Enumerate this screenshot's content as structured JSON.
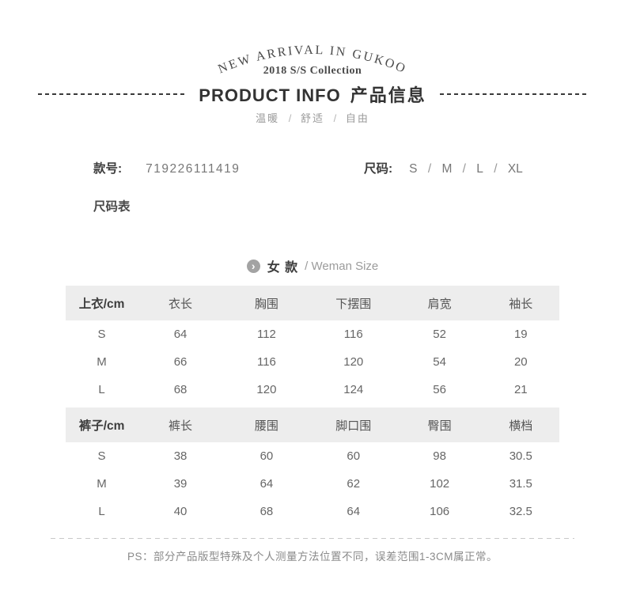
{
  "header": {
    "arc_text": "NEW ARRIVAL IN GUKOO",
    "collection": "2018 S/S Collection",
    "title_en": "PRODUCT INFO",
    "title_zh": "产品信息",
    "tagline_words": [
      "温暖",
      "舒适",
      "自由"
    ],
    "tagline_separator": "/"
  },
  "product_info": {
    "style_label": "款号:",
    "style_number": "719226111419",
    "size_label": "尺码:",
    "sizes": [
      "S",
      "M",
      "L",
      "XL"
    ],
    "size_separator": "/",
    "size_chart_label": "尺码表"
  },
  "size_section": {
    "chevron_icon": "›",
    "heading_zh": "女 款",
    "heading_en": "/ Weman Size"
  },
  "tables": [
    {
      "name": "tops",
      "headers": [
        "上衣/cm",
        "衣长",
        "胸围",
        "下摆围",
        "肩宽",
        "袖长"
      ],
      "rows": [
        [
          "S",
          "64",
          "112",
          "116",
          "52",
          "19"
        ],
        [
          "M",
          "66",
          "116",
          "120",
          "54",
          "20"
        ],
        [
          "L",
          "68",
          "120",
          "124",
          "56",
          "21"
        ]
      ]
    },
    {
      "name": "pants",
      "headers": [
        "裤子/cm",
        "裤长",
        "腰围",
        "脚口围",
        "臀围",
        "横档"
      ],
      "rows": [
        [
          "S",
          "38",
          "60",
          "60",
          "98",
          "30.5"
        ],
        [
          "M",
          "39",
          "64",
          "62",
          "102",
          "31.5"
        ],
        [
          "L",
          "40",
          "68",
          "64",
          "106",
          "32.5"
        ]
      ]
    }
  ],
  "footer_note": "PS：部分产品版型特殊及个人测量方法位置不同，误差范围1-3CM属正常。",
  "colors": {
    "title_dark": "#333333",
    "label_dark": "#3d3d3d",
    "value_gray": "#777777",
    "table_text_gray": "#666666",
    "light_gray": "#9b9b9b",
    "header_band_bg": "#ededed",
    "divider_gray": "#c8c8c8",
    "icon_circle_gray": "#a3a3a3"
  }
}
